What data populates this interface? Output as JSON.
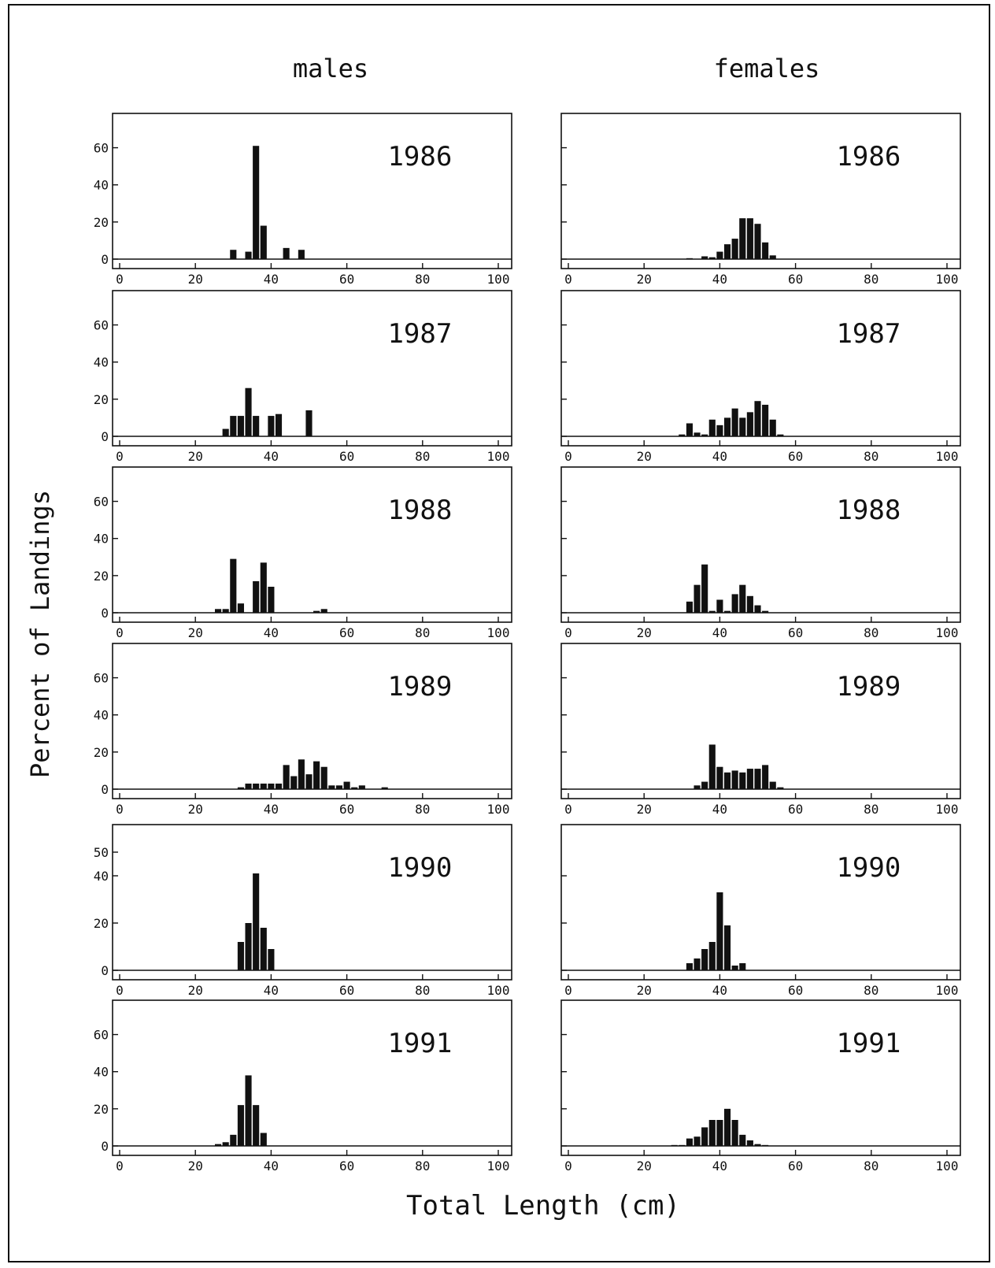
{
  "figure": {
    "column_titles": [
      "males",
      "females"
    ],
    "ylabel": "Percent of Landings",
    "xlabel": "Total Length (cm)"
  },
  "colors": {
    "bar": "#111111",
    "axis": "#111111",
    "background": "#ffffff"
  },
  "chart_data": [
    {
      "type": "bar",
      "column": "males",
      "panel_label": "1986",
      "xlim": [
        0,
        100
      ],
      "ylim": [
        0,
        70
      ],
      "yticks": [
        0,
        20,
        40,
        60
      ],
      "xticks": [
        0,
        20,
        40,
        60,
        80,
        100
      ],
      "x": [
        30,
        34,
        36,
        38,
        44,
        48
      ],
      "values": [
        5,
        4,
        61,
        18,
        6,
        5
      ]
    },
    {
      "type": "bar",
      "column": "females",
      "panel_label": "1986",
      "xlim": [
        0,
        100
      ],
      "ylim": [
        0,
        70
      ],
      "yticks": [],
      "xticks": [
        0,
        20,
        40,
        60,
        80,
        100
      ],
      "x": [
        32,
        36,
        38,
        40,
        42,
        44,
        46,
        48,
        50,
        52,
        54
      ],
      "values": [
        0.5,
        1.5,
        1,
        4,
        8,
        11,
        22,
        22,
        19,
        9,
        2
      ]
    },
    {
      "type": "bar",
      "column": "males",
      "panel_label": "1987",
      "xlim": [
        0,
        100
      ],
      "ylim": [
        0,
        70
      ],
      "yticks": [
        0,
        20,
        40,
        60
      ],
      "xticks": [
        0,
        20,
        40,
        60,
        80,
        100
      ],
      "x": [
        28,
        30,
        32,
        34,
        36,
        40,
        42,
        50
      ],
      "values": [
        4,
        11,
        11,
        26,
        11,
        11,
        12,
        14
      ]
    },
    {
      "type": "bar",
      "column": "females",
      "panel_label": "1987",
      "xlim": [
        0,
        100
      ],
      "ylim": [
        0,
        70
      ],
      "yticks": [],
      "xticks": [
        0,
        20,
        40,
        60,
        80,
        100
      ],
      "x": [
        30,
        32,
        34,
        36,
        38,
        40,
        42,
        44,
        46,
        48,
        50,
        52,
        54,
        56
      ],
      "values": [
        1,
        7,
        2,
        1,
        9,
        6,
        10,
        15,
        10,
        13,
        19,
        17,
        9,
        1
      ]
    },
    {
      "type": "bar",
      "column": "males",
      "panel_label": "1988",
      "xlim": [
        0,
        100
      ],
      "ylim": [
        0,
        70
      ],
      "yticks": [
        0,
        20,
        40,
        60
      ],
      "xticks": [
        0,
        20,
        40,
        60,
        80,
        100
      ],
      "x": [
        26,
        28,
        30,
        32,
        36,
        38,
        40,
        52,
        54
      ],
      "values": [
        2,
        2,
        29,
        5,
        17,
        27,
        14,
        1,
        2
      ]
    },
    {
      "type": "bar",
      "column": "females",
      "panel_label": "1988",
      "xlim": [
        0,
        100
      ],
      "ylim": [
        0,
        70
      ],
      "yticks": [],
      "xticks": [
        0,
        20,
        40,
        60,
        80,
        100
      ],
      "x": [
        32,
        34,
        36,
        38,
        40,
        42,
        44,
        46,
        48,
        50,
        52
      ],
      "values": [
        6,
        15,
        26,
        1,
        7,
        1,
        10,
        15,
        9,
        4,
        1
      ]
    },
    {
      "type": "bar",
      "column": "males",
      "panel_label": "1989",
      "xlim": [
        0,
        100
      ],
      "ylim": [
        0,
        70
      ],
      "yticks": [
        0,
        20,
        40,
        60
      ],
      "xticks": [
        0,
        20,
        40,
        60,
        80,
        100
      ],
      "x": [
        32,
        34,
        36,
        38,
        40,
        42,
        44,
        46,
        48,
        50,
        52,
        54,
        56,
        58,
        60,
        62,
        64,
        70
      ],
      "values": [
        1,
        3,
        3,
        3,
        3,
        3,
        13,
        7,
        16,
        8,
        15,
        12,
        2,
        2,
        4,
        1,
        2,
        1
      ]
    },
    {
      "type": "bar",
      "column": "females",
      "panel_label": "1989",
      "xlim": [
        0,
        100
      ],
      "ylim": [
        0,
        70
      ],
      "yticks": [],
      "xticks": [
        0,
        20,
        40,
        60,
        80,
        100
      ],
      "x": [
        34,
        36,
        38,
        40,
        42,
        44,
        46,
        48,
        50,
        52,
        54,
        56
      ],
      "values": [
        2,
        4,
        24,
        12,
        9,
        10,
        9,
        11,
        11,
        13,
        4,
        1
      ]
    },
    {
      "type": "bar",
      "column": "males",
      "panel_label": "1990",
      "xlim": [
        0,
        100
      ],
      "ylim": [
        0,
        55
      ],
      "yticks": [
        0,
        20,
        40,
        50
      ],
      "xticks": [
        0,
        20,
        40,
        60,
        80,
        100
      ],
      "x": [
        32,
        34,
        36,
        38,
        40
      ],
      "values": [
        12,
        20,
        41,
        18,
        9
      ]
    },
    {
      "type": "bar",
      "column": "females",
      "panel_label": "1990",
      "xlim": [
        0,
        100
      ],
      "ylim": [
        0,
        55
      ],
      "yticks": [],
      "xticks": [
        0,
        20,
        40,
        60,
        80,
        100
      ],
      "x": [
        32,
        34,
        36,
        38,
        40,
        42,
        44,
        46
      ],
      "values": [
        3,
        5,
        9,
        12,
        33,
        19,
        2,
        3
      ]
    },
    {
      "type": "bar",
      "column": "males",
      "panel_label": "1991",
      "xlim": [
        0,
        100
      ],
      "ylim": [
        0,
        70
      ],
      "yticks": [
        0,
        20,
        40,
        60
      ],
      "xticks": [
        0,
        20,
        40,
        60,
        80,
        100
      ],
      "x": [
        26,
        28,
        30,
        32,
        34,
        36,
        38
      ],
      "values": [
        1,
        2,
        6,
        22,
        38,
        22,
        7
      ]
    },
    {
      "type": "bar",
      "column": "females",
      "panel_label": "1991",
      "xlim": [
        0,
        100
      ],
      "ylim": [
        0,
        70
      ],
      "yticks": [],
      "xticks": [
        0,
        20,
        40,
        60,
        80,
        100
      ],
      "x": [
        28,
        30,
        32,
        34,
        36,
        38,
        40,
        42,
        44,
        46,
        48,
        50,
        52
      ],
      "values": [
        0.5,
        0.5,
        4,
        5,
        10,
        14,
        14,
        20,
        14,
        6,
        3,
        1,
        0.5
      ]
    }
  ]
}
